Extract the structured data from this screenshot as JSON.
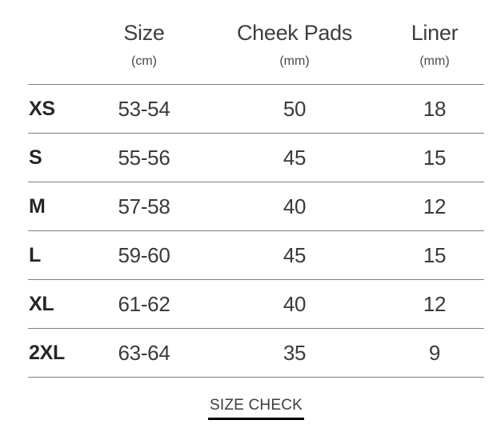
{
  "table": {
    "columns": [
      {
        "label": "Size",
        "unit": "(cm)"
      },
      {
        "label": "Cheek Pads",
        "unit": "(mm)"
      },
      {
        "label": "Liner",
        "unit": "(mm)"
      }
    ],
    "rows": [
      {
        "size": "XS",
        "head_cm": "53-54",
        "cheek_pads_mm": "50",
        "liner_mm": "18"
      },
      {
        "size": "S",
        "head_cm": "55-56",
        "cheek_pads_mm": "45",
        "liner_mm": "15"
      },
      {
        "size": "M",
        "head_cm": "57-58",
        "cheek_pads_mm": "40",
        "liner_mm": "12"
      },
      {
        "size": "L",
        "head_cm": "59-60",
        "cheek_pads_mm": "45",
        "liner_mm": "15"
      },
      {
        "size": "XL",
        "head_cm": "61-62",
        "cheek_pads_mm": "40",
        "liner_mm": "12"
      },
      {
        "size": "2XL",
        "head_cm": "63-64",
        "cheek_pads_mm": "35",
        "liner_mm": "9"
      }
    ]
  },
  "footer": {
    "size_check_label": "SIZE CHECK"
  },
  "colors": {
    "text": "#3a3a3a",
    "bold_label": "#262626",
    "rule": "#7d7d7d",
    "link_underline": "#000000",
    "background": "#ffffff"
  }
}
